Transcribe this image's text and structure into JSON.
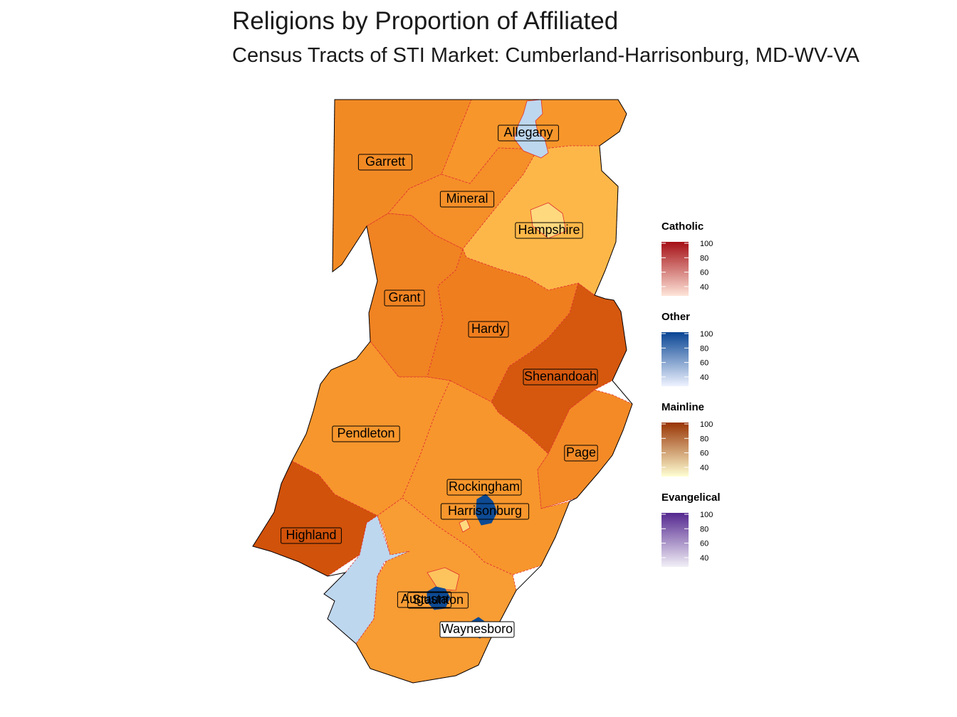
{
  "title": "Religions by Proportion of Affiliated",
  "subtitle": "Census Tracts of STI Market: Cumberland-Harrisonburg, MD-WV-VA",
  "counties": [
    {
      "name": "Allegany",
      "fill": "#F7962B"
    },
    {
      "name": "Garrett",
      "fill": "#F28A24"
    },
    {
      "name": "Mineral",
      "fill": "#F58F28"
    },
    {
      "name": "Hampshire",
      "fill": "#FDB748"
    },
    {
      "name": "Grant",
      "fill": "#F08322"
    },
    {
      "name": "Hardy",
      "fill": "#EF7E1E"
    },
    {
      "name": "Shenandoah",
      "fill": "#D5580E"
    },
    {
      "name": "Pendleton",
      "fill": "#F7962C"
    },
    {
      "name": "Page",
      "fill": "#F38A26"
    },
    {
      "name": "Rockingham",
      "fill": "#F7962C"
    },
    {
      "name": "Harrisonburg",
      "fill": "#0D4A93"
    },
    {
      "name": "Highland",
      "fill": "#D1520A"
    },
    {
      "name": "Augusta",
      "fill": "#F89C34"
    },
    {
      "name": "Staunton",
      "fill": "#0D4A93"
    },
    {
      "name": "Waynesboro",
      "fill": "#0D4A93"
    }
  ],
  "legend": [
    {
      "title": "Catholic",
      "ticks": [
        "100",
        "80",
        "60",
        "40"
      ],
      "color_low": "#FEE5D9",
      "color_high": "#A50F15"
    },
    {
      "title": "Other",
      "ticks": [
        "100",
        "80",
        "60",
        "40"
      ],
      "color_low": "#EFF3FF",
      "color_high": "#084594"
    },
    {
      "title": "Mainline",
      "ticks": [
        "100",
        "80",
        "60",
        "40"
      ],
      "color_low": "#FFFFD4",
      "color_high": "#993404"
    },
    {
      "title": "Evangelical",
      "ticks": [
        "100",
        "80",
        "60",
        "40"
      ],
      "color_low": "#F2F0F7",
      "color_high": "#54278F"
    }
  ],
  "colors": {
    "county_border": "#E03030",
    "outer_border": "#000000",
    "other_light": "#BDD7EE",
    "other_dark": "#0D4A93"
  }
}
